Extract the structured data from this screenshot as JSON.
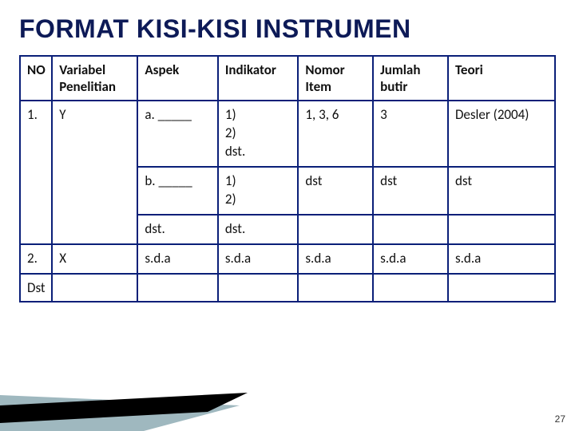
{
  "title": {
    "text": "FORMAT KISI-KISI INSTRUMEN",
    "fontsize": 32,
    "color": "#0d1a57"
  },
  "page_number": "27",
  "table": {
    "type": "table",
    "border_color": "#0a1f78",
    "background_color": "#ffffff",
    "header_fontsize": 17,
    "cell_fontsize": 17,
    "columns": [
      {
        "label": "NO",
        "width_pct": 6
      },
      {
        "label": "Variabel Penelitian",
        "width_pct": 16
      },
      {
        "label": "Aspek",
        "width_pct": 15
      },
      {
        "label": "Indikator",
        "width_pct": 15
      },
      {
        "label": "Nomor Item",
        "width_pct": 14
      },
      {
        "label": "Jumlah butir",
        "width_pct": 14
      },
      {
        "label": "Teori",
        "width_pct": 20
      }
    ],
    "blocks": [
      {
        "no": "1.",
        "var": "Y",
        "no_rowspan": 3,
        "var_rowspan": 3,
        "sub": [
          {
            "aspek": "a. _____",
            "indikator": [
              "1)",
              "2)",
              "dst."
            ],
            "nomor": "1, 3, 6",
            "jumlah": "3",
            "teori": "Desler (2004)"
          },
          {
            "aspek": "b. _____",
            "indikator": [
              "1)",
              "2)"
            ],
            "nomor": "dst",
            "jumlah": "dst",
            "teori": "dst"
          },
          {
            "aspek": "dst.",
            "indikator": [
              "dst."
            ],
            "nomor": "",
            "jumlah": "",
            "teori": ""
          }
        ]
      },
      {
        "no": "2.",
        "var": "X",
        "no_rowspan": 1,
        "var_rowspan": 1,
        "sub": [
          {
            "aspek": "s.d.a",
            "indikator": [
              "s.d.a"
            ],
            "nomor": "s.d.a",
            "jumlah": "s.d.a",
            "teori": "s.d.a"
          }
        ]
      },
      {
        "no": "Dst",
        "var": "",
        "no_rowspan": 1,
        "var_rowspan": 1,
        "sub": [
          {
            "aspek": "",
            "indikator": [
              ""
            ],
            "nomor": "",
            "jumlah": "",
            "teori": ""
          }
        ]
      }
    ]
  },
  "decor": {
    "band1": "#9fb8bf",
    "band2": "#000000"
  }
}
